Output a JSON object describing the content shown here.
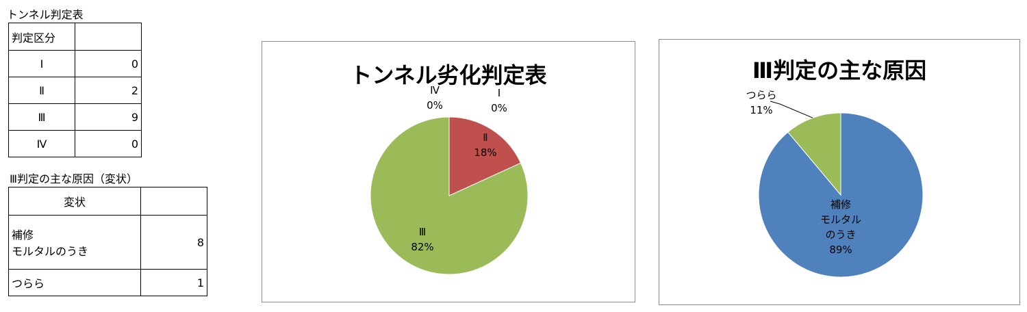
{
  "table1": {
    "caption": "トンネル判定表",
    "header": "判定区分",
    "rows": [
      {
        "label": "Ⅰ",
        "value": "0"
      },
      {
        "label": "Ⅱ",
        "value": "2"
      },
      {
        "label": "Ⅲ",
        "value": "9"
      },
      {
        "label": "Ⅳ",
        "value": "0"
      }
    ]
  },
  "table2": {
    "caption": "Ⅲ判定の主な原因（変状）",
    "header": "変状",
    "rows": [
      {
        "label_line1": "補修",
        "label_line2": "モルタルのうき",
        "value": "8"
      },
      {
        "label_line1": "つらら",
        "label_line2": "",
        "value": "1"
      }
    ]
  },
  "chart_data": [
    {
      "type": "pie",
      "title": "トンネル劣化判定表",
      "categories": [
        "Ⅰ",
        "Ⅱ",
        "Ⅲ",
        "Ⅳ"
      ],
      "values": [
        0,
        2,
        9,
        0
      ],
      "percent_labels": [
        "0%",
        "18%",
        "82%",
        "0%"
      ],
      "colors": [
        "#4f81bd",
        "#c0504d",
        "#9bbb59",
        "#8064a2"
      ],
      "start_angle": "12 o'clock",
      "direction": "clockwise"
    },
    {
      "type": "pie",
      "title": "Ⅲ判定の主な原因",
      "categories": [
        "補修 モルタル のうき",
        "つらら"
      ],
      "label_lines": [
        [
          "補修",
          "モルタル",
          "のうき"
        ],
        [
          "つらら"
        ]
      ],
      "values": [
        8,
        1
      ],
      "percent_labels": [
        "89%",
        "11%"
      ],
      "colors": [
        "#4f81bd",
        "#9bbb59"
      ],
      "start_angle": "12 o'clock",
      "direction": "clockwise"
    }
  ]
}
